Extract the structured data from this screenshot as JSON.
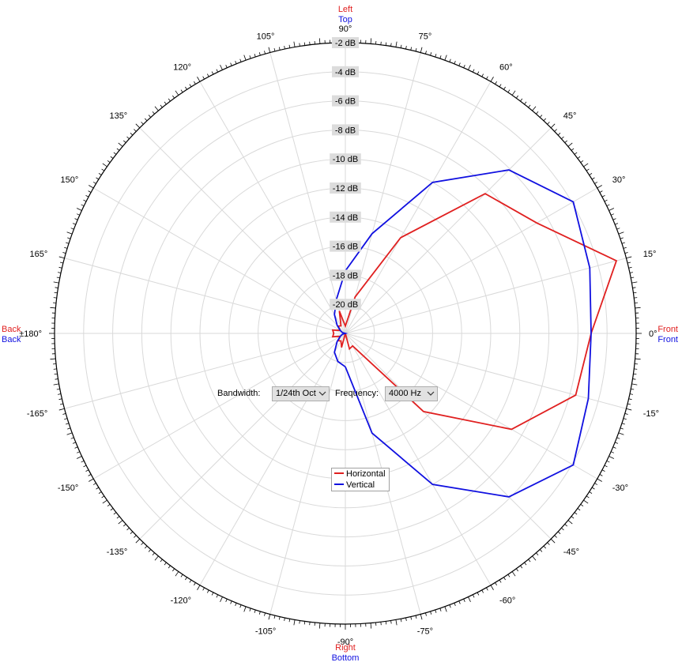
{
  "controls": {
    "bandwidth_label": "Bandwidth:",
    "bandwidth_value": "1/24th Oct",
    "frequency_label": "Frequency:",
    "frequency_value": "4000 Hz"
  },
  "legend": [
    {
      "name": "Horizontal",
      "color": "#e02020"
    },
    {
      "name": "Vertical",
      "color": "#1010e0"
    }
  ],
  "orientation_labels": {
    "top": [
      {
        "text": "Left",
        "color": "#e02020"
      },
      {
        "text": "Top",
        "color": "#1010e0"
      }
    ],
    "bottom": [
      {
        "text": "Right",
        "color": "#e02020"
      },
      {
        "text": "Bottom",
        "color": "#1010e0"
      }
    ],
    "left": [
      {
        "text": "Back",
        "color": "#e02020"
      },
      {
        "text": "Back",
        "color": "#1010e0"
      }
    ],
    "right": [
      {
        "text": "Front",
        "color": "#e02020"
      },
      {
        "text": "Front",
        "color": "#1010e0"
      }
    ]
  },
  "chart_data": {
    "type": "polar-line",
    "angle_labels": [
      {
        "angle": 0,
        "text": "0°"
      },
      {
        "angle": 15,
        "text": "15°"
      },
      {
        "angle": 30,
        "text": "30°"
      },
      {
        "angle": 45,
        "text": "45°"
      },
      {
        "angle": 60,
        "text": "60°"
      },
      {
        "angle": 75,
        "text": "75°"
      },
      {
        "angle": 90,
        "text": "90°"
      },
      {
        "angle": 105,
        "text": "105°"
      },
      {
        "angle": 120,
        "text": "120°"
      },
      {
        "angle": 135,
        "text": "135°"
      },
      {
        "angle": 150,
        "text": "150°"
      },
      {
        "angle": 165,
        "text": "165°"
      },
      {
        "angle": 180,
        "text": "±180°"
      },
      {
        "angle": -165,
        "text": "-165°"
      },
      {
        "angle": -150,
        "text": "-150°"
      },
      {
        "angle": -135,
        "text": "-135°"
      },
      {
        "angle": -120,
        "text": "-120°"
      },
      {
        "angle": -105,
        "text": "-105°"
      },
      {
        "angle": -90,
        "text": "-90°"
      },
      {
        "angle": -75,
        "text": "-75°"
      },
      {
        "angle": -60,
        "text": "-60°"
      },
      {
        "angle": -45,
        "text": "-45°"
      },
      {
        "angle": -30,
        "text": "-30°"
      },
      {
        "angle": -15,
        "text": "-15°"
      }
    ],
    "radial_labels": [
      "-2 dB",
      "-4 dB",
      "-6 dB",
      "-8 dB",
      "-10 dB",
      "-12 dB",
      "-14 dB",
      "-16 dB",
      "-18 dB",
      "-20 dB"
    ],
    "radial_range_db": [
      -20,
      0
    ],
    "grid": true,
    "legend_position": "bottom-center",
    "series": [
      {
        "name": "Horizontal",
        "color": "#e02020",
        "points": [
          {
            "angle": -90,
            "db": -20.0
          },
          {
            "angle": -75,
            "db": -18.9
          },
          {
            "angle": -60,
            "db": -19.0
          },
          {
            "angle": -45,
            "db": -12.4
          },
          {
            "angle": -30,
            "db": -6.8
          },
          {
            "angle": -15,
            "db": -3.6
          },
          {
            "angle": 0,
            "db": -3.1
          },
          {
            "angle": 15,
            "db": -0.7
          },
          {
            "angle": 30,
            "db": -4.8
          },
          {
            "angle": 45,
            "db": -6.4
          },
          {
            "angle": 60,
            "db": -12.4
          },
          {
            "angle": 75,
            "db": -17.4
          },
          {
            "angle": 90,
            "db": -19.5
          },
          {
            "angle": 105,
            "db": -18.4
          },
          {
            "angle": 120,
            "db": -19.4
          },
          {
            "angle": 135,
            "db": -19.3
          },
          {
            "angle": 150,
            "db": -19.6
          },
          {
            "angle": 165,
            "db": -19.1
          },
          {
            "angle": 180,
            "db": -19.2
          },
          {
            "angle": -165,
            "db": -19.1
          },
          {
            "angle": -150,
            "db": -19.6
          },
          {
            "angle": -135,
            "db": -19.3
          },
          {
            "angle": -120,
            "db": -19.4
          },
          {
            "angle": -105,
            "db": -19.0
          }
        ]
      },
      {
        "name": "Vertical",
        "color": "#1010e0",
        "points": [
          {
            "angle": -90,
            "db": -17.7
          },
          {
            "angle": -75,
            "db": -12.9
          },
          {
            "angle": -60,
            "db": -8.0
          },
          {
            "angle": -45,
            "db": -4.1
          },
          {
            "angle": -30,
            "db": -1.9
          },
          {
            "angle": -15,
            "db": -2.7
          },
          {
            "angle": 0,
            "db": -3.1
          },
          {
            "angle": 15,
            "db": -2.6
          },
          {
            "angle": 30,
            "db": -1.9
          },
          {
            "angle": 45,
            "db": -4.1
          },
          {
            "angle": 60,
            "db": -8.0
          },
          {
            "angle": 75,
            "db": -12.9
          },
          {
            "angle": 90,
            "db": -15.7
          },
          {
            "angle": 105,
            "db": -17.6
          },
          {
            "angle": 120,
            "db": -18.5
          },
          {
            "angle": 135,
            "db": -19.2
          },
          {
            "angle": 150,
            "db": -19.6
          },
          {
            "angle": 165,
            "db": -19.8
          },
          {
            "angle": 180,
            "db": -20.0
          },
          {
            "angle": -165,
            "db": -19.8
          },
          {
            "angle": -150,
            "db": -19.6
          },
          {
            "angle": -135,
            "db": -19.2
          },
          {
            "angle": -120,
            "db": -18.5
          },
          {
            "angle": -105,
            "db": -18.0
          }
        ]
      }
    ]
  }
}
